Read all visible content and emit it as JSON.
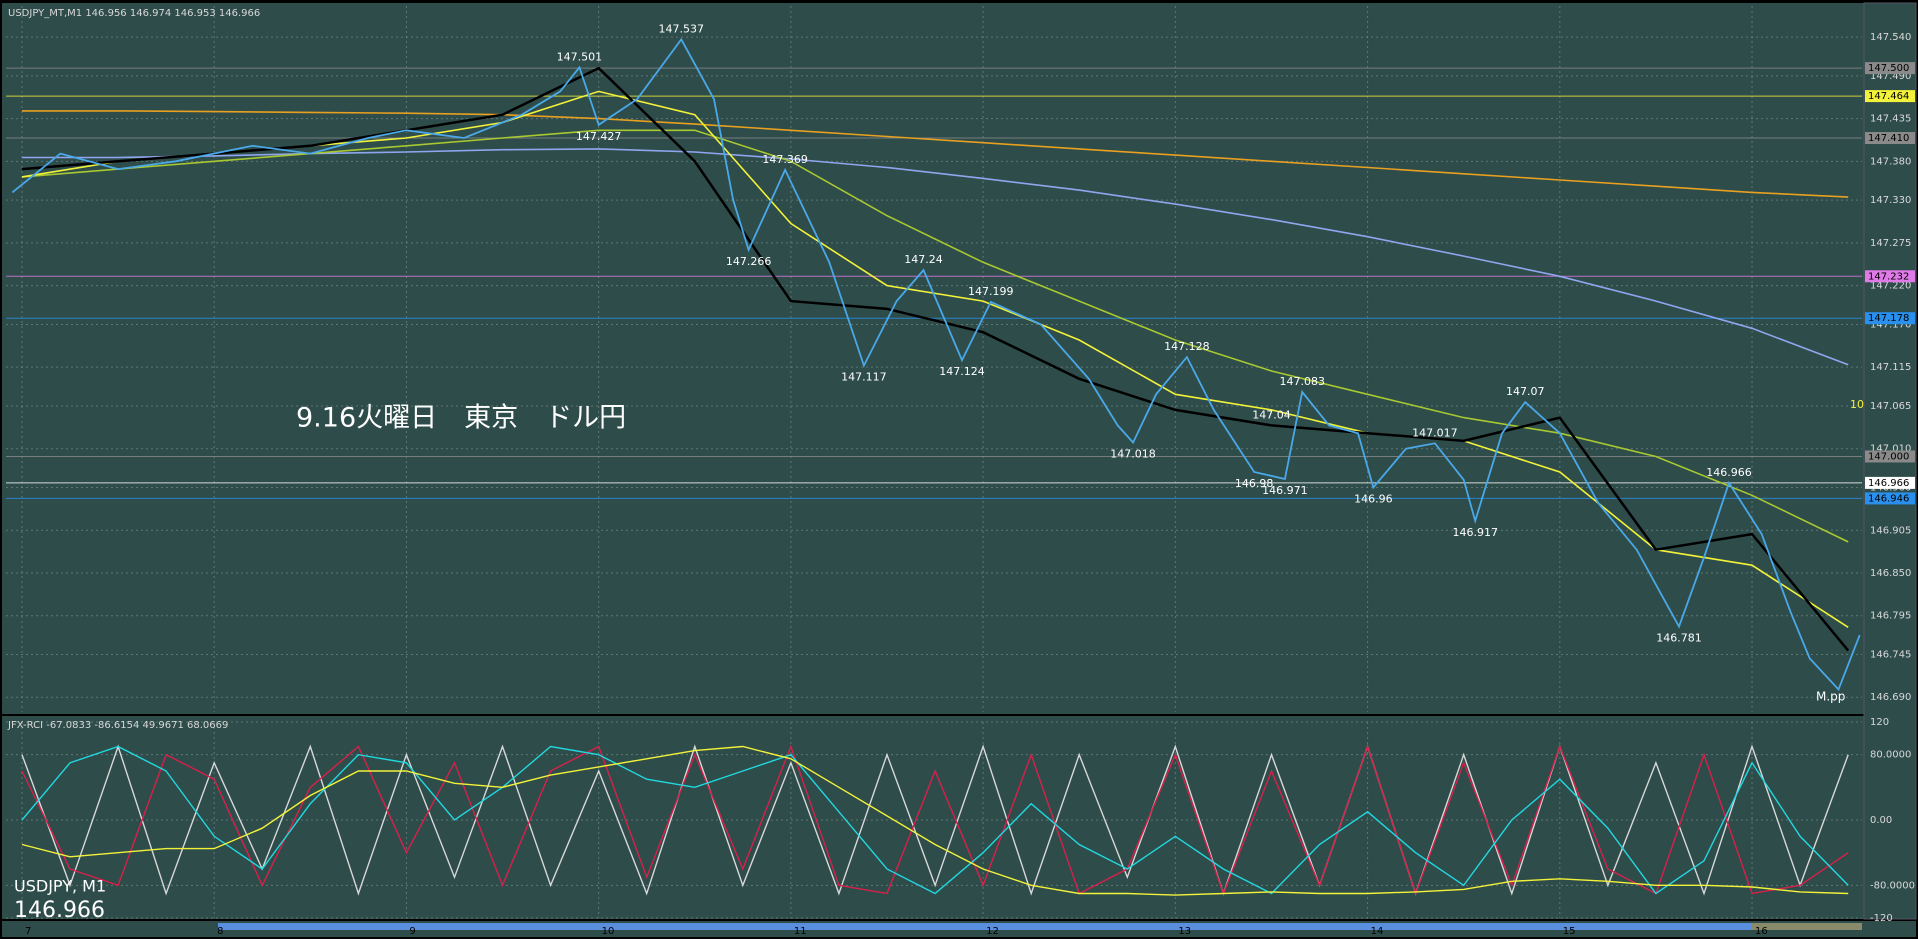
{
  "chart_data": [
    {
      "type": "line",
      "title": "USDJPY_MT,M1  146.956 146.974 146.953 146.966",
      "annotation_text": "9.16火曜日　東京　ドル円",
      "symbol_label": "USDJPY, M1",
      "last_price": 146.966,
      "marker_text": "10",
      "pivot_label": "M.pp",
      "xlim": [
        6.917,
        16.572
      ],
      "xticks": [
        7,
        8,
        9,
        10,
        11,
        12,
        13,
        14,
        15,
        16
      ],
      "ylim": [
        146.671,
        147.58
      ],
      "yticks": [
        {
          "value": 147.54,
          "label": "147.540"
        },
        {
          "value": 147.49,
          "label": "147.490"
        },
        {
          "value": 147.435,
          "label": "147.435"
        },
        {
          "value": 147.38,
          "label": "147.380"
        },
        {
          "value": 147.33,
          "label": "147.330"
        },
        {
          "value": 147.275,
          "label": "147.275"
        },
        {
          "value": 147.22,
          "label": "147.220"
        },
        {
          "value": 147.17,
          "label": "147.170"
        },
        147.115,
        {
          "value": 147.065,
          "label": "147.065"
        },
        {
          "value": 147.01,
          "label": "147.010"
        },
        {
          "value": 146.96,
          "label": "146.960"
        },
        146.905,
        {
          "value": 146.85,
          "label": "146.850"
        },
        146.795,
        146.745,
        {
          "value": 146.69,
          "label": "146.690"
        }
      ],
      "grid": true,
      "x": [
        6.95,
        7.2,
        7.5,
        7.8,
        8.2,
        8.5,
        8.8,
        9.0,
        9.3,
        9.6,
        9.8,
        9.9,
        10.0,
        10.2,
        10.43,
        10.6,
        10.7,
        10.78,
        10.97,
        11.2,
        11.38,
        11.55,
        11.69,
        11.89,
        12.04,
        12.3,
        12.55,
        12.7,
        12.78,
        12.9,
        13.06,
        13.2,
        13.41,
        13.57,
        13.66,
        13.8,
        13.95,
        14.03,
        14.2,
        14.35,
        14.5,
        14.56,
        14.7,
        14.82,
        15.0,
        15.2,
        15.4,
        15.62,
        15.75,
        15.88,
        16.05,
        16.2,
        16.3,
        16.45,
        16.56
      ],
      "series": [
        {
          "color": "#4aa8e8",
          "values": [
            147.34,
            147.39,
            147.37,
            147.38,
            147.4,
            147.39,
            147.41,
            147.42,
            147.41,
            147.44,
            147.47,
            147.501,
            147.427,
            147.46,
            147.537,
            147.46,
            147.33,
            147.266,
            147.369,
            147.25,
            147.117,
            147.2,
            147.24,
            147.124,
            147.199,
            147.17,
            147.1,
            147.04,
            147.018,
            147.08,
            147.128,
            147.06,
            146.98,
            146.971,
            147.083,
            147.04,
            147.03,
            146.96,
            147.01,
            147.017,
            146.97,
            146.917,
            147.03,
            147.07,
            147.03,
            146.94,
            146.88,
            146.781,
            146.87,
            146.966,
            146.9,
            146.8,
            146.74,
            146.7,
            146.77
          ]
        }
      ],
      "moving_averages": {
        "x": [
          7,
          7.5,
          8,
          8.5,
          9,
          9.5,
          10,
          10.5,
          11,
          11.5,
          12,
          12.5,
          13,
          13.5,
          14,
          14.5,
          15,
          15.5,
          16,
          16.5
        ],
        "series": [
          {
            "color": "#e8a020",
            "values": [
              147.445,
              147.445,
              147.444,
              147.443,
              147.442,
              147.44,
              147.435,
              147.428,
              147.42,
              147.412,
              147.404,
              147.396,
              147.388,
              147.38,
              147.372,
              147.364,
              147.356,
              147.348,
              147.34,
              147.334
            ]
          },
          {
            "color": "#8fa6ef",
            "values": [
              147.385,
              147.385,
              147.387,
              147.39,
              147.392,
              147.395,
              147.396,
              147.392,
              147.383,
              147.372,
              147.358,
              147.343,
              147.325,
              147.305,
              147.283,
              147.258,
              147.232,
              147.2,
              147.165,
              147.118
            ]
          },
          {
            "color": "#a8c832",
            "values": [
              147.36,
              147.37,
              147.38,
              147.39,
              147.4,
              147.41,
              147.42,
              147.42,
              147.38,
              147.31,
              147.25,
              147.2,
              147.15,
              147.11,
              147.08,
              147.05,
              147.03,
              147.0,
              146.95,
              146.89
            ]
          },
          {
            "color": "#f2f23a",
            "values": [
              147.36,
              147.38,
              147.39,
              147.4,
              147.41,
              147.43,
              147.47,
              147.44,
              147.3,
              147.22,
              147.2,
              147.15,
              147.08,
              147.06,
              147.03,
              147.02,
              146.98,
              146.88,
              146.86,
              146.78
            ]
          },
          {
            "color": "#000000",
            "values": [
              147.37,
              147.38,
              147.39,
              147.4,
              147.42,
              147.44,
              147.5,
              147.38,
              147.2,
              147.19,
              147.16,
              147.1,
              147.06,
              147.04,
              147.03,
              147.02,
              147.05,
              146.88,
              146.9,
              146.75
            ]
          }
        ]
      },
      "levels": [
        {
          "value": 147.5,
          "label": "147.500",
          "color": "#8a8a8a"
        },
        {
          "value": 147.464,
          "label": "147.464",
          "color": "#f2f23a"
        },
        {
          "value": 147.41,
          "label": "147.410",
          "color": "#8a8a8a"
        },
        {
          "value": 147.232,
          "label": "147.232",
          "color": "#e07ae8"
        },
        {
          "value": 147.178,
          "label": "147.178",
          "color": "#2a90ee"
        },
        {
          "value": 147.0,
          "label": "147.000",
          "color": "#8a8a8a"
        },
        {
          "value": 146.966,
          "label": "146.966",
          "color": "#ffffff"
        },
        {
          "value": 146.946,
          "label": "146.946",
          "color": "#2a90ee"
        }
      ],
      "annotations": [
        {
          "x": 9.9,
          "y": 147.501,
          "kind": "high"
        },
        {
          "x": 10.0,
          "y": 147.427,
          "kind": "low"
        },
        {
          "x": 10.43,
          "y": 147.537,
          "kind": "high"
        },
        {
          "x": 10.78,
          "y": 147.266,
          "kind": "low"
        },
        {
          "x": 10.97,
          "y": 147.369,
          "kind": "high"
        },
        {
          "x": 11.38,
          "y": 147.117,
          "kind": "low"
        },
        {
          "x": 11.69,
          "y": 147.24,
          "kind": "high"
        },
        {
          "x": 11.89,
          "y": 147.124,
          "kind": "low"
        },
        {
          "x": 12.04,
          "y": 147.199,
          "kind": "high"
        },
        {
          "x": 12.78,
          "y": 147.018,
          "kind": "low"
        },
        {
          "x": 13.06,
          "y": 147.128,
          "kind": "high"
        },
        {
          "x": 13.41,
          "y": 146.98,
          "kind": "low"
        },
        {
          "x": 13.57,
          "y": 146.971,
          "kind": "low"
        },
        {
          "x": 13.66,
          "y": 147.083,
          "kind": "high"
        },
        {
          "x": 13.5,
          "y": 147.04,
          "kind": "high"
        },
        {
          "x": 14.03,
          "y": 146.96,
          "kind": "low"
        },
        {
          "x": 14.35,
          "y": 147.017,
          "kind": "high"
        },
        {
          "x": 14.56,
          "y": 146.917,
          "kind": "low"
        },
        {
          "x": 14.82,
          "y": 147.07,
          "kind": "high"
        },
        {
          "x": 15.62,
          "y": 146.781,
          "kind": "low"
        },
        {
          "x": 15.88,
          "y": 146.966,
          "kind": "high"
        }
      ]
    },
    {
      "type": "line",
      "title": "JFX-RCI -67.0833 -86.6154 49.9671 68.0669",
      "xlim": [
        6.917,
        16.572
      ],
      "ylim": [
        -120,
        120
      ],
      "yticks": [
        120,
        {
          "value": 80,
          "label": "80.0000"
        },
        {
          "value": 0,
          "label": "0.00"
        },
        {
          "value": -80,
          "label": "-80.0000"
        },
        -120
      ],
      "x": [
        7,
        7.25,
        7.5,
        7.75,
        8,
        8.25,
        8.5,
        8.75,
        9,
        9.25,
        9.5,
        9.75,
        10,
        10.25,
        10.5,
        10.75,
        11,
        11.25,
        11.5,
        11.75,
        12,
        12.25,
        12.5,
        12.75,
        13,
        13.25,
        13.5,
        13.75,
        14,
        14.25,
        14.5,
        14.75,
        15,
        15.25,
        15.5,
        15.75,
        16,
        16.25,
        16.5
      ],
      "series": [
        {
          "color": "#d8d8d8",
          "values": [
            80,
            -80,
            90,
            -90,
            70,
            -60,
            90,
            -90,
            80,
            -70,
            90,
            -80,
            60,
            -90,
            90,
            -80,
            70,
            -90,
            80,
            -80,
            90,
            -90,
            80,
            -70,
            90,
            -90,
            80,
            -80,
            90,
            -90,
            80,
            -90,
            90,
            -80,
            70,
            -90,
            90,
            -80,
            80
          ]
        },
        {
          "color": "#d8204a",
          "values": [
            60,
            -60,
            -80,
            80,
            50,
            -80,
            40,
            90,
            -40,
            70,
            -80,
            60,
            90,
            -70,
            80,
            -60,
            90,
            -80,
            -90,
            60,
            -80,
            80,
            -90,
            -60,
            80,
            -90,
            60,
            -80,
            90,
            -90,
            70,
            -80,
            90,
            -60,
            -90,
            80,
            -90,
            -80,
            -40
          ]
        },
        {
          "color": "#22d8e0",
          "values": [
            0,
            70,
            90,
            60,
            -20,
            -60,
            20,
            80,
            70,
            0,
            40,
            90,
            80,
            50,
            40,
            60,
            80,
            10,
            -60,
            -90,
            -40,
            20,
            -30,
            -60,
            -20,
            -60,
            -90,
            -30,
            10,
            -40,
            -80,
            0,
            50,
            -10,
            -90,
            -50,
            70,
            -20,
            -80
          ]
        },
        {
          "color": "#f2f23a",
          "values": [
            -30,
            -45,
            -40,
            -35,
            -35,
            -10,
            30,
            60,
            60,
            45,
            40,
            55,
            65,
            75,
            85,
            90,
            75,
            40,
            5,
            -30,
            -60,
            -80,
            -90,
            -90,
            -92,
            -90,
            -88,
            -90,
            -90,
            -88,
            -85,
            -75,
            -72,
            -75,
            -80,
            -80,
            -82,
            -88,
            -90
          ]
        }
      ]
    }
  ]
}
